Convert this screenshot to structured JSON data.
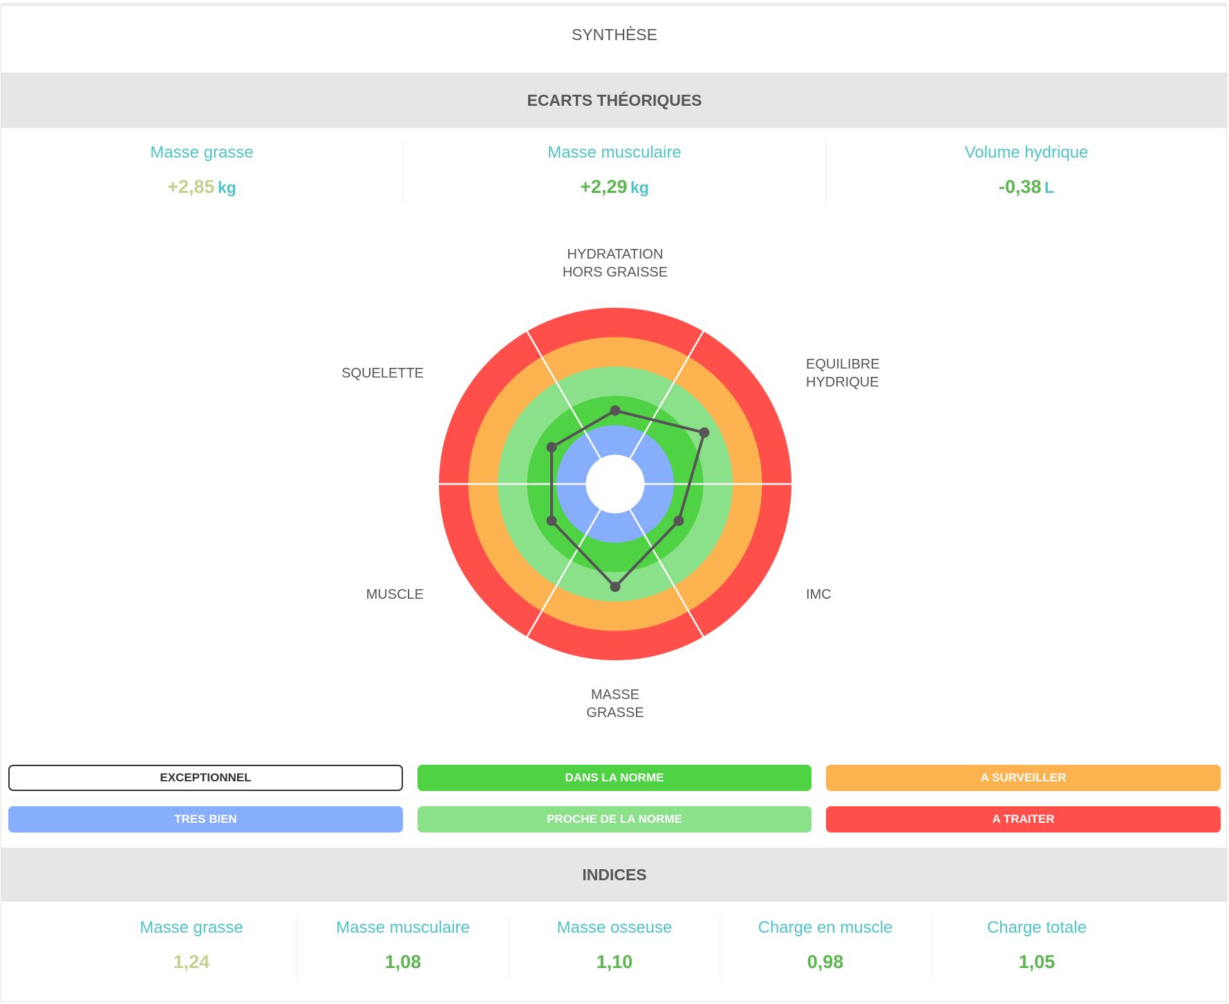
{
  "header": {
    "title": "SYNTHÈSE"
  },
  "ecarts": {
    "title": "ECARTS THÉORIQUES",
    "items": [
      {
        "label": "Masse grasse",
        "value": "+2,85",
        "unit": "kg",
        "color": "#c2d38f"
      },
      {
        "label": "Masse musculaire",
        "value": "+2,29",
        "unit": "kg",
        "color": "#5cb54f"
      },
      {
        "label": "Volume hydrique",
        "value": "-0,38",
        "unit": "L",
        "color": "#5cb54f"
      }
    ]
  },
  "chart_data": {
    "type": "radar",
    "axes": [
      {
        "label_lines": [
          "HYDRATATION",
          "HORS GRAISSE"
        ],
        "value": 2.5
      },
      {
        "label_lines": [
          "EQUILIBRE",
          "HYDRIQUE"
        ],
        "value": 3.5
      },
      {
        "label_lines": [
          "IMC"
        ],
        "value": 2.5
      },
      {
        "label_lines": [
          "MASSE",
          "GRASSE"
        ],
        "value": 3.5
      },
      {
        "label_lines": [
          "MUSCLE"
        ],
        "value": 2.5
      },
      {
        "label_lines": [
          "SQUELETTE"
        ],
        "value": 2.5
      }
    ],
    "rings": [
      {
        "name": "EXCEPTIONNEL",
        "color": "#ffffff"
      },
      {
        "name": "TRES BIEN",
        "color": "#86aefc"
      },
      {
        "name": "DANS LA NORME",
        "color": "#4fd244"
      },
      {
        "name": "PROCHE DE LA NORME",
        "color": "#8be18a"
      },
      {
        "name": "A SURVEILLER",
        "color": "#fbb24f"
      },
      {
        "name": "A TRAITER",
        "color": "#fe4f4a"
      }
    ],
    "range": [
      0,
      6
    ],
    "line_color": "#555555"
  },
  "legend": [
    {
      "label": "EXCEPTIONNEL",
      "bg": "#ffffff",
      "fg": "#333333"
    },
    {
      "label": "DANS LA NORME",
      "bg": "#4fd244",
      "fg": "#ffffff"
    },
    {
      "label": "A SURVEILLER",
      "bg": "#fbb24f",
      "fg": "#ffffff"
    },
    {
      "label": "TRES BIEN",
      "bg": "#86aefc",
      "fg": "#ffffff"
    },
    {
      "label": "PROCHE DE LA NORME",
      "bg": "#8be18a",
      "fg": "#ffffff"
    },
    {
      "label": "A TRAITER",
      "bg": "#fe4f4a",
      "fg": "#ffffff"
    }
  ],
  "indices": {
    "title": "INDICES",
    "items": [
      {
        "label": "Masse grasse",
        "value": "1,24",
        "color": "#c2d38f"
      },
      {
        "label": "Masse musculaire",
        "value": "1,08",
        "color": "#5cb54f"
      },
      {
        "label": "Masse osseuse",
        "value": "1,10",
        "color": "#5cb54f"
      },
      {
        "label": "Charge en muscle",
        "value": "0,98",
        "color": "#5cb54f"
      },
      {
        "label": "Charge totale",
        "value": "1,05",
        "color": "#5cb54f"
      }
    ]
  }
}
